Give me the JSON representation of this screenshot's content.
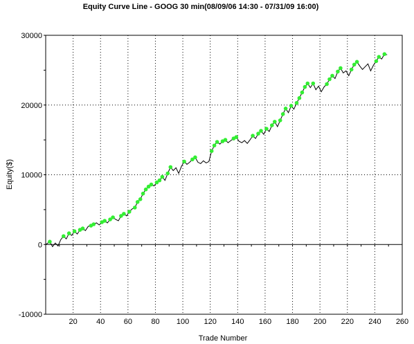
{
  "chart_data": {
    "type": "line",
    "title": "Equity Curve Line - GOOG 30 min(08/09/06 14:30 - 07/31/09 16:00)",
    "xlabel": "Trade Number",
    "ylabel": "Equity($)",
    "xlim": [
      0,
      260
    ],
    "ylim": [
      -10000,
      30000
    ],
    "x_ticks": [
      20,
      40,
      60,
      80,
      100,
      120,
      140,
      160,
      180,
      200,
      220,
      240,
      260
    ],
    "y_ticks": [
      -10000,
      0,
      10000,
      20000,
      30000
    ],
    "grid": true,
    "colors": {
      "line": "#000000",
      "highlight": "#33ee33",
      "grid": "#000000"
    },
    "series": [
      {
        "values": [
          [
            0,
            0
          ],
          [
            3,
            400
          ],
          [
            5,
            -300
          ],
          [
            7,
            200
          ],
          [
            9,
            -200
          ],
          [
            11,
            700
          ],
          [
            13,
            1200
          ],
          [
            15,
            800
          ],
          [
            17,
            1600
          ],
          [
            19,
            1300
          ],
          [
            21,
            1900
          ],
          [
            23,
            1500
          ],
          [
            25,
            2100
          ],
          [
            27,
            2300
          ],
          [
            29,
            2000
          ],
          [
            31,
            2600
          ],
          [
            33,
            2700
          ],
          [
            35,
            2900
          ],
          [
            37,
            3100
          ],
          [
            39,
            2800
          ],
          [
            41,
            3200
          ],
          [
            43,
            3400
          ],
          [
            45,
            3100
          ],
          [
            47,
            3600
          ],
          [
            49,
            3900
          ],
          [
            51,
            3600
          ],
          [
            53,
            3400
          ],
          [
            55,
            4100
          ],
          [
            57,
            4400
          ],
          [
            59,
            4100
          ],
          [
            61,
            4700
          ],
          [
            63,
            5100
          ],
          [
            65,
            5300
          ],
          [
            67,
            6100
          ],
          [
            69,
            6500
          ],
          [
            71,
            7300
          ],
          [
            73,
            7900
          ],
          [
            75,
            8300
          ],
          [
            77,
            8600
          ],
          [
            79,
            8400
          ],
          [
            81,
            8900
          ],
          [
            83,
            9200
          ],
          [
            85,
            9700
          ],
          [
            87,
            9200
          ],
          [
            89,
            10200
          ],
          [
            91,
            11100
          ],
          [
            93,
            10600
          ],
          [
            95,
            11000
          ],
          [
            97,
            10200
          ],
          [
            99,
            11200
          ],
          [
            101,
            11900
          ],
          [
            103,
            11500
          ],
          [
            105,
            11800
          ],
          [
            107,
            12200
          ],
          [
            109,
            12500
          ],
          [
            111,
            11800
          ],
          [
            113,
            11600
          ],
          [
            115,
            12000
          ],
          [
            117,
            11700
          ],
          [
            119,
            11900
          ],
          [
            121,
            13400
          ],
          [
            123,
            14200
          ],
          [
            125,
            14700
          ],
          [
            127,
            14400
          ],
          [
            129,
            14800
          ],
          [
            131,
            15000
          ],
          [
            133,
            14600
          ],
          [
            135,
            14900
          ],
          [
            137,
            15200
          ],
          [
            139,
            15400
          ],
          [
            141,
            14800
          ],
          [
            143,
            14600
          ],
          [
            145,
            14900
          ],
          [
            147,
            14500
          ],
          [
            149,
            15000
          ],
          [
            151,
            15600
          ],
          [
            153,
            15200
          ],
          [
            155,
            15900
          ],
          [
            157,
            16300
          ],
          [
            159,
            15800
          ],
          [
            161,
            16600
          ],
          [
            163,
            16200
          ],
          [
            165,
            17100
          ],
          [
            167,
            17600
          ],
          [
            169,
            16900
          ],
          [
            171,
            17800
          ],
          [
            173,
            18700
          ],
          [
            175,
            19500
          ],
          [
            177,
            18900
          ],
          [
            179,
            19900
          ],
          [
            181,
            19400
          ],
          [
            183,
            20300
          ],
          [
            185,
            21000
          ],
          [
            187,
            21800
          ],
          [
            189,
            22600
          ],
          [
            191,
            23100
          ],
          [
            193,
            22500
          ],
          [
            195,
            23100
          ],
          [
            197,
            22200
          ],
          [
            199,
            22700
          ],
          [
            201,
            21900
          ],
          [
            203,
            22600
          ],
          [
            205,
            23000
          ],
          [
            207,
            23700
          ],
          [
            209,
            24200
          ],
          [
            211,
            23800
          ],
          [
            213,
            24800
          ],
          [
            215,
            25300
          ],
          [
            217,
            24600
          ],
          [
            219,
            24900
          ],
          [
            221,
            24200
          ],
          [
            223,
            25100
          ],
          [
            225,
            25800
          ],
          [
            227,
            26200
          ],
          [
            229,
            25600
          ],
          [
            231,
            25100
          ],
          [
            233,
            25500
          ],
          [
            235,
            25900
          ],
          [
            237,
            24900
          ],
          [
            239,
            25700
          ],
          [
            241,
            26300
          ],
          [
            243,
            26900
          ],
          [
            245,
            26600
          ],
          [
            247,
            27300
          ],
          [
            249,
            27200
          ]
        ]
      },
      {
        "values": [
          [
            3,
            400
          ],
          [
            13,
            1200
          ],
          [
            17,
            1600
          ],
          [
            21,
            1900
          ],
          [
            25,
            2100
          ],
          [
            27,
            2300
          ],
          [
            33,
            2700
          ],
          [
            35,
            2900
          ],
          [
            41,
            3200
          ],
          [
            43,
            3400
          ],
          [
            47,
            3600
          ],
          [
            49,
            3900
          ],
          [
            55,
            4100
          ],
          [
            57,
            4400
          ],
          [
            61,
            4700
          ],
          [
            65,
            5300
          ],
          [
            67,
            6100
          ],
          [
            69,
            6500
          ],
          [
            71,
            7300
          ],
          [
            73,
            7900
          ],
          [
            75,
            8300
          ],
          [
            77,
            8600
          ],
          [
            81,
            8900
          ],
          [
            83,
            9200
          ],
          [
            85,
            9700
          ],
          [
            89,
            10200
          ],
          [
            91,
            11100
          ],
          [
            101,
            11900
          ],
          [
            107,
            12200
          ],
          [
            109,
            12500
          ],
          [
            121,
            13400
          ],
          [
            123,
            14200
          ],
          [
            125,
            14700
          ],
          [
            129,
            14800
          ],
          [
            131,
            15000
          ],
          [
            137,
            15200
          ],
          [
            139,
            15400
          ],
          [
            151,
            15600
          ],
          [
            155,
            15900
          ],
          [
            157,
            16300
          ],
          [
            161,
            16600
          ],
          [
            165,
            17100
          ],
          [
            167,
            17600
          ],
          [
            171,
            17800
          ],
          [
            173,
            18700
          ],
          [
            175,
            19500
          ],
          [
            179,
            19900
          ],
          [
            183,
            20300
          ],
          [
            185,
            21000
          ],
          [
            187,
            21800
          ],
          [
            189,
            22600
          ],
          [
            191,
            23100
          ],
          [
            195,
            23100
          ],
          [
            205,
            23000
          ],
          [
            207,
            23700
          ],
          [
            209,
            24200
          ],
          [
            213,
            24800
          ],
          [
            215,
            25300
          ],
          [
            223,
            25100
          ],
          [
            225,
            25800
          ],
          [
            227,
            26200
          ],
          [
            241,
            26300
          ],
          [
            243,
            26900
          ],
          [
            247,
            27300
          ]
        ]
      }
    ]
  }
}
